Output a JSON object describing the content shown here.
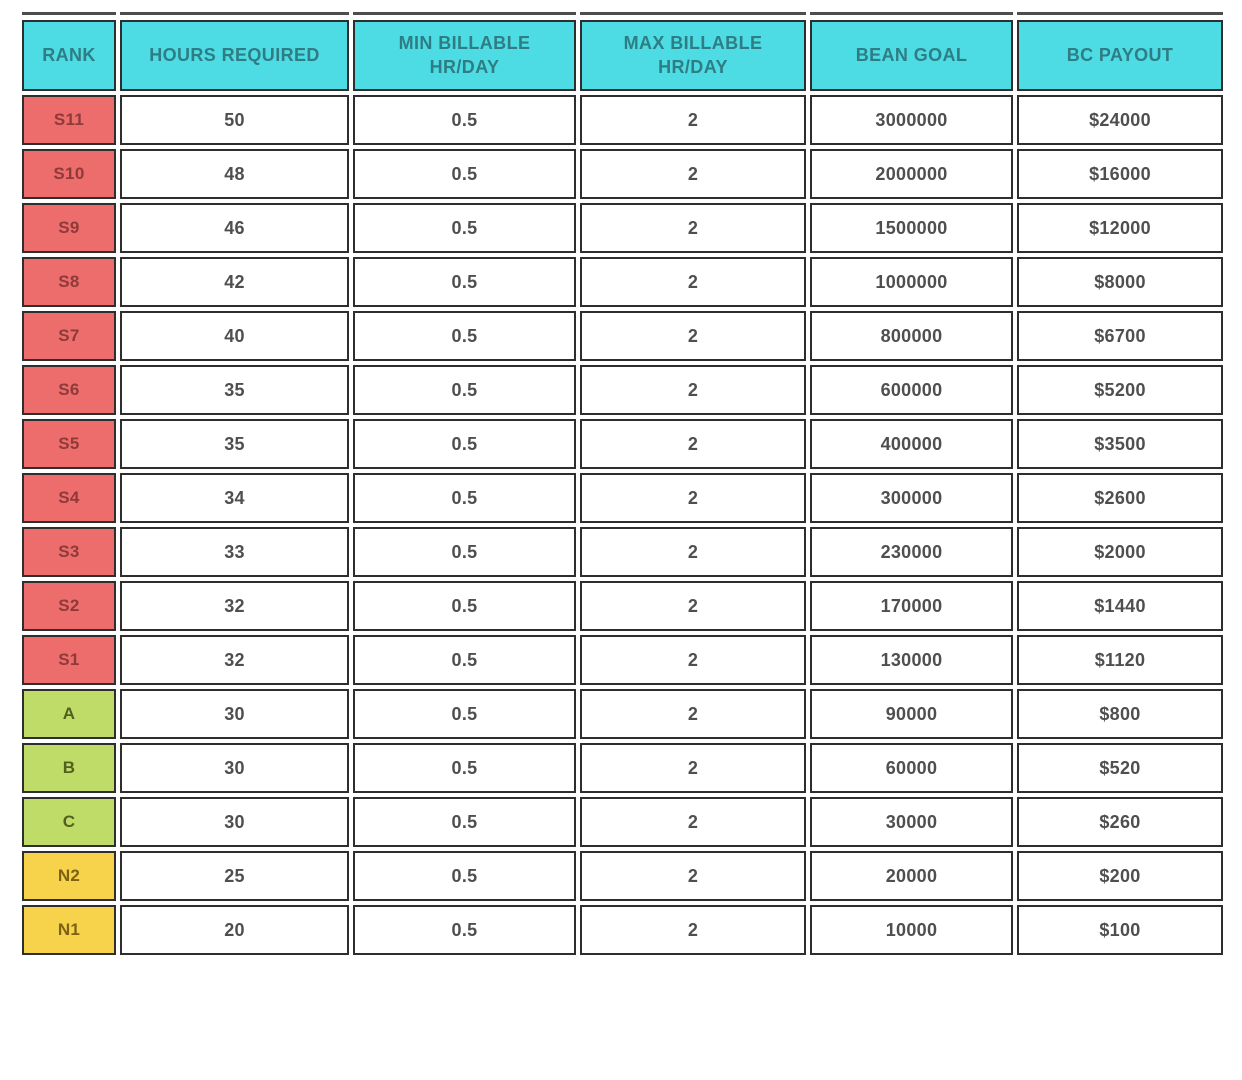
{
  "chart_data": {
    "type": "table",
    "columns": [
      {
        "label": "RANK"
      },
      {
        "label": "HOURS REQUIRED"
      },
      {
        "label": "MIN BILLABLE HR/DAY"
      },
      {
        "label": "MAX BILLABLE HR/DAY"
      },
      {
        "label": "BEAN GOAL"
      },
      {
        "label": "BC PAYOUT"
      }
    ],
    "rows": [
      {
        "rank": "S11",
        "tier": "s",
        "hours": "50",
        "min_billable": "0.5",
        "max_billable": "2",
        "bean_goal": "3000000",
        "bc_payout": "$24000"
      },
      {
        "rank": "S10",
        "tier": "s",
        "hours": "48",
        "min_billable": "0.5",
        "max_billable": "2",
        "bean_goal": "2000000",
        "bc_payout": "$16000"
      },
      {
        "rank": "S9",
        "tier": "s",
        "hours": "46",
        "min_billable": "0.5",
        "max_billable": "2",
        "bean_goal": "1500000",
        "bc_payout": "$12000"
      },
      {
        "rank": "S8",
        "tier": "s",
        "hours": "42",
        "min_billable": "0.5",
        "max_billable": "2",
        "bean_goal": "1000000",
        "bc_payout": "$8000"
      },
      {
        "rank": "S7",
        "tier": "s",
        "hours": "40",
        "min_billable": "0.5",
        "max_billable": "2",
        "bean_goal": "800000",
        "bc_payout": "$6700"
      },
      {
        "rank": "S6",
        "tier": "s",
        "hours": "35",
        "min_billable": "0.5",
        "max_billable": "2",
        "bean_goal": "600000",
        "bc_payout": "$5200"
      },
      {
        "rank": "S5",
        "tier": "s",
        "hours": "35",
        "min_billable": "0.5",
        "max_billable": "2",
        "bean_goal": "400000",
        "bc_payout": "$3500"
      },
      {
        "rank": "S4",
        "tier": "s",
        "hours": "34",
        "min_billable": "0.5",
        "max_billable": "2",
        "bean_goal": "300000",
        "bc_payout": "$2600"
      },
      {
        "rank": "S3",
        "tier": "s",
        "hours": "33",
        "min_billable": "0.5",
        "max_billable": "2",
        "bean_goal": "230000",
        "bc_payout": "$2000"
      },
      {
        "rank": "S2",
        "tier": "s",
        "hours": "32",
        "min_billable": "0.5",
        "max_billable": "2",
        "bean_goal": "170000",
        "bc_payout": "$1440"
      },
      {
        "rank": "S1",
        "tier": "s",
        "hours": "32",
        "min_billable": "0.5",
        "max_billable": "2",
        "bean_goal": "130000",
        "bc_payout": "$1120"
      },
      {
        "rank": "A",
        "tier": "abc",
        "hours": "30",
        "min_billable": "0.5",
        "max_billable": "2",
        "bean_goal": "90000",
        "bc_payout": "$800"
      },
      {
        "rank": "B",
        "tier": "abc",
        "hours": "30",
        "min_billable": "0.5",
        "max_billable": "2",
        "bean_goal": "60000",
        "bc_payout": "$520"
      },
      {
        "rank": "C",
        "tier": "abc",
        "hours": "30",
        "min_billable": "0.5",
        "max_billable": "2",
        "bean_goal": "30000",
        "bc_payout": "$260"
      },
      {
        "rank": "N2",
        "tier": "n",
        "hours": "25",
        "min_billable": "0.5",
        "max_billable": "2",
        "bean_goal": "20000",
        "bc_payout": "$200"
      },
      {
        "rank": "N1",
        "tier": "n",
        "hours": "20",
        "min_billable": "0.5",
        "max_billable": "2",
        "bean_goal": "10000",
        "bc_payout": "$100"
      }
    ],
    "title": "",
    "layout_hints": {
      "header_position": "top",
      "grid": "separated-bordered-cells"
    }
  },
  "colors": {
    "page_bg": "#ffffff",
    "header_bg": "#4edce4",
    "header_text": "#2f7d84",
    "tier_s_bg": "#ed6c6c",
    "tier_s_text": "#8f3a3a",
    "tier_abc_bg": "#c0dc68",
    "tier_abc_text": "#52601e",
    "tier_n_bg": "#f7d24b",
    "tier_n_text": "#7d6213",
    "border": "#2e2e2e",
    "cell_text": "#4f4f4f"
  }
}
